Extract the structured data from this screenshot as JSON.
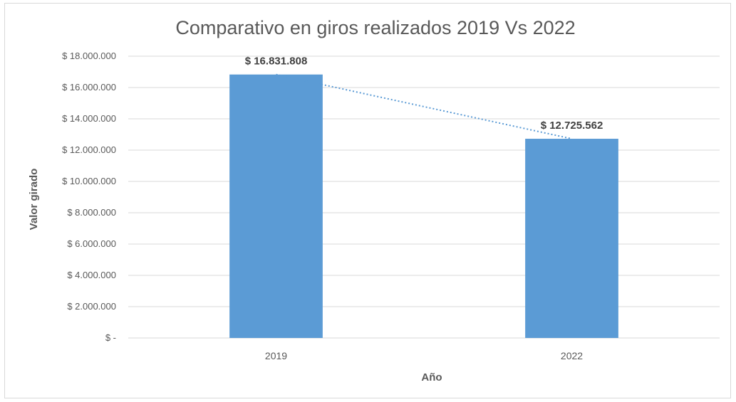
{
  "chart_data": {
    "type": "bar",
    "title": "Comparativo en giros realizados 2019 Vs 2022",
    "xlabel": "Año",
    "ylabel": "Valor girado",
    "categories": [
      "2019",
      "2022"
    ],
    "values": [
      16831808,
      12725562
    ],
    "data_labels": [
      "$ 16.831.808",
      "$ 12.725.562"
    ],
    "ylim": [
      0,
      18000000
    ],
    "yticks": [
      0,
      2000000,
      4000000,
      6000000,
      8000000,
      10000000,
      12000000,
      14000000,
      16000000,
      18000000
    ],
    "ytick_labels": [
      "$ -",
      "$ 2.000.000",
      "$ 4.000.000",
      "$ 6.000.000",
      "$ 8.000.000",
      "$ 10.000.000",
      "$ 12.000.000",
      "$ 14.000.000",
      "$ 16.000.000",
      "$ 18.000.000"
    ],
    "grid": true,
    "trendline": "linear",
    "bar_color": "#5b9bd5"
  }
}
